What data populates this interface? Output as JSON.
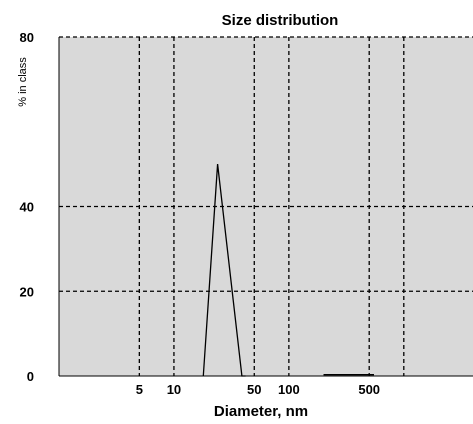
{
  "chart_data": {
    "type": "line",
    "title": "Size distribution",
    "xlabel": "Diameter, nm",
    "ylabel": "% in class",
    "x_scale": "log",
    "xlim": [
      1,
      4000
    ],
    "ylim": [
      0,
      80
    ],
    "x_ticks": [
      5,
      10,
      50,
      100,
      500
    ],
    "x_tick_labels": [
      "5",
      "10",
      "50",
      "100",
      "500"
    ],
    "x_gridlines": [
      5,
      10,
      50,
      100,
      500,
      1000
    ],
    "y_ticks": [
      0,
      20,
      40,
      80
    ],
    "y_tick_labels": [
      "0",
      "20",
      "40",
      "80"
    ],
    "y_gridlines": [
      20,
      40,
      80
    ],
    "grid": true,
    "plot_background": "#d9d9d9",
    "series": [
      {
        "x": [
          18,
          24,
          39,
          42
        ],
        "y": [
          0,
          50,
          0,
          0
        ]
      },
      {
        "x": [
          200,
          550
        ],
        "y": [
          0.3,
          0.3
        ]
      }
    ]
  }
}
